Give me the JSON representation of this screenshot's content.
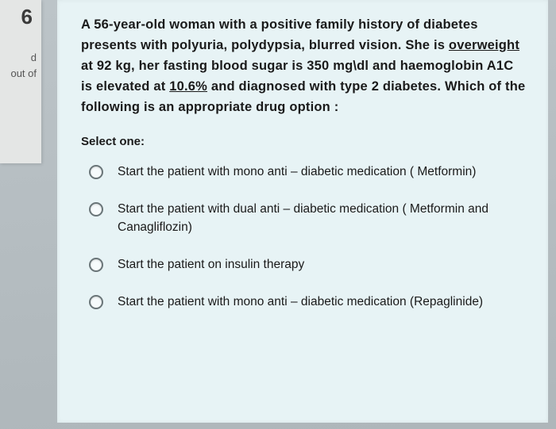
{
  "sidebar": {
    "question_number": "6",
    "line1": "d",
    "line2": "out of"
  },
  "question": {
    "stem_parts": [
      "A 56-year-old woman with a positive family history of diabetes presents with polyuria, polydypsia, blurred vision. She is ",
      "overweight",
      " at 92 kg, her fasting blood sugar is 350 mg\\dl and haemoglobin A1C is elevated at ",
      "10.6%",
      " and diagnosed with type 2 diabetes.  Which of the following is an appropriate drug option :"
    ],
    "select_label": "Select one:",
    "options": [
      "Start the patient with mono anti – diabetic medication ( Metformin)",
      "Start the patient with dual anti – diabetic medication ( Metformin and Canagliflozin)",
      "Start the patient on insulin therapy",
      "Start the patient with mono anti – diabetic medication (Repaglinide)"
    ]
  },
  "colors": {
    "card_bg": "#e7f3f5",
    "sidebar_bg": "#e4e6e5",
    "page_bg": "#b6bec1"
  }
}
